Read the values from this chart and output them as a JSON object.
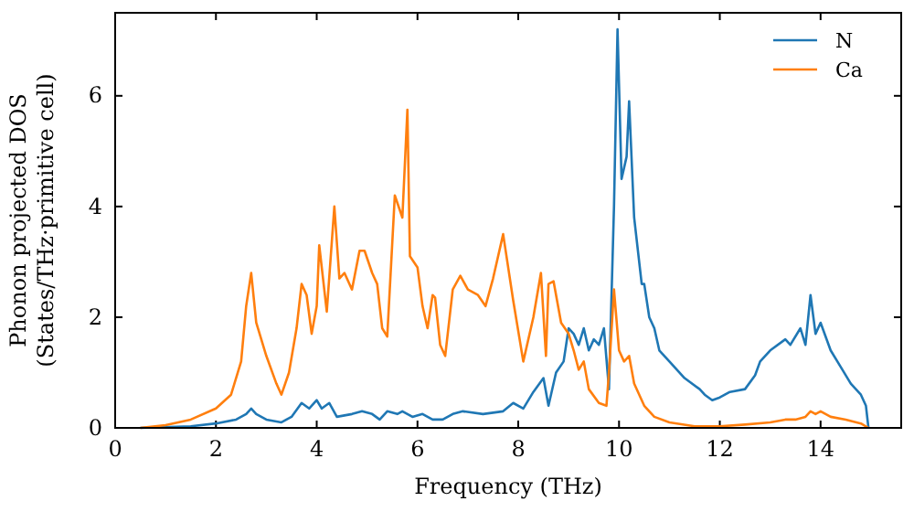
{
  "chart_data": {
    "type": "line",
    "xlabel": "Frequency (THz)",
    "ylabel": "Phonon projected DOS\n(States/THz·primitive cell)",
    "xlim": [
      0,
      15.6
    ],
    "ylim": [
      0,
      7.5
    ],
    "xticks": [
      0,
      2,
      4,
      6,
      8,
      10,
      12,
      14
    ],
    "yticks": [
      0,
      2,
      4,
      6
    ],
    "legend": "top right",
    "grid": false,
    "series": [
      {
        "name": "N",
        "color": "#1f77b4",
        "x": [
          0.5,
          1.5,
          2.0,
          2.4,
          2.6,
          2.7,
          2.8,
          3.0,
          3.3,
          3.5,
          3.7,
          3.85,
          4.0,
          4.1,
          4.25,
          4.4,
          4.7,
          4.9,
          5.1,
          5.25,
          5.4,
          5.6,
          5.7,
          5.9,
          6.1,
          6.3,
          6.5,
          6.7,
          6.9,
          7.3,
          7.7,
          7.9,
          8.1,
          8.3,
          8.5,
          8.6,
          8.75,
          8.9,
          9.0,
          9.1,
          9.2,
          9.3,
          9.4,
          9.5,
          9.6,
          9.7,
          9.8,
          9.9,
          9.97,
          10.05,
          10.15,
          10.2,
          10.3,
          10.45,
          10.5,
          10.6,
          10.7,
          10.8,
          11.0,
          11.3,
          11.6,
          11.7,
          11.85,
          12.0,
          12.2,
          12.5,
          12.7,
          12.8,
          13.0,
          13.3,
          13.4,
          13.6,
          13.7,
          13.8,
          13.9,
          14.0,
          14.2,
          14.4,
          14.6,
          14.8,
          14.9,
          14.95
        ],
        "values": [
          0,
          0.03,
          0.08,
          0.15,
          0.25,
          0.35,
          0.25,
          0.15,
          0.1,
          0.2,
          0.45,
          0.35,
          0.5,
          0.35,
          0.45,
          0.2,
          0.25,
          0.3,
          0.25,
          0.15,
          0.3,
          0.25,
          0.3,
          0.2,
          0.25,
          0.15,
          0.15,
          0.25,
          0.3,
          0.25,
          0.3,
          0.45,
          0.35,
          0.65,
          0.9,
          0.4,
          1.0,
          1.2,
          1.8,
          1.7,
          1.5,
          1.8,
          1.4,
          1.6,
          1.5,
          1.8,
          0.7,
          4.0,
          7.2,
          4.5,
          4.9,
          5.9,
          3.8,
          2.6,
          2.6,
          2.0,
          1.8,
          1.4,
          1.2,
          0.9,
          0.7,
          0.6,
          0.5,
          0.55,
          0.65,
          0.7,
          0.95,
          1.2,
          1.4,
          1.6,
          1.5,
          1.8,
          1.5,
          2.4,
          1.7,
          1.9,
          1.4,
          1.1,
          0.8,
          0.6,
          0.4,
          0
        ]
      },
      {
        "name": "Ca",
        "color": "#ff7f0e",
        "x": [
          0.5,
          1.0,
          1.5,
          2.0,
          2.3,
          2.5,
          2.6,
          2.7,
          2.8,
          3.0,
          3.2,
          3.3,
          3.45,
          3.6,
          3.7,
          3.8,
          3.9,
          4.0,
          4.05,
          4.2,
          4.35,
          4.45,
          4.55,
          4.7,
          4.85,
          4.95,
          5.1,
          5.2,
          5.3,
          5.4,
          5.55,
          5.7,
          5.8,
          5.85,
          6.0,
          6.1,
          6.2,
          6.3,
          6.35,
          6.45,
          6.55,
          6.7,
          6.85,
          7.0,
          7.2,
          7.35,
          7.5,
          7.7,
          7.9,
          8.1,
          8.3,
          8.45,
          8.55,
          8.6,
          8.7,
          8.85,
          9.0,
          9.1,
          9.2,
          9.3,
          9.4,
          9.6,
          9.75,
          9.8,
          9.9,
          10.0,
          10.1,
          10.2,
          10.3,
          10.5,
          10.7,
          11.0,
          11.5,
          12.0,
          12.5,
          13.0,
          13.3,
          13.5,
          13.7,
          13.8,
          13.9,
          14.0,
          14.2,
          14.5,
          14.8,
          14.95
        ],
        "values": [
          0,
          0.05,
          0.15,
          0.35,
          0.6,
          1.2,
          2.2,
          2.8,
          1.9,
          1.3,
          0.8,
          0.6,
          1.0,
          1.8,
          2.6,
          2.4,
          1.7,
          2.2,
          3.3,
          2.1,
          4.0,
          2.7,
          2.8,
          2.5,
          3.2,
          3.2,
          2.8,
          2.6,
          1.8,
          1.65,
          4.2,
          3.8,
          5.75,
          3.1,
          2.9,
          2.2,
          1.8,
          2.4,
          2.35,
          1.5,
          1.3,
          2.5,
          2.75,
          2.5,
          2.4,
          2.2,
          2.7,
          3.5,
          2.3,
          1.2,
          2.0,
          2.8,
          1.3,
          2.6,
          2.65,
          1.9,
          1.7,
          1.4,
          1.05,
          1.2,
          0.7,
          0.45,
          0.4,
          1.0,
          2.5,
          1.4,
          1.2,
          1.3,
          0.8,
          0.4,
          0.2,
          0.1,
          0.03,
          0.03,
          0.06,
          0.1,
          0.15,
          0.15,
          0.2,
          0.3,
          0.25,
          0.3,
          0.2,
          0.15,
          0.08,
          0
        ]
      }
    ]
  }
}
